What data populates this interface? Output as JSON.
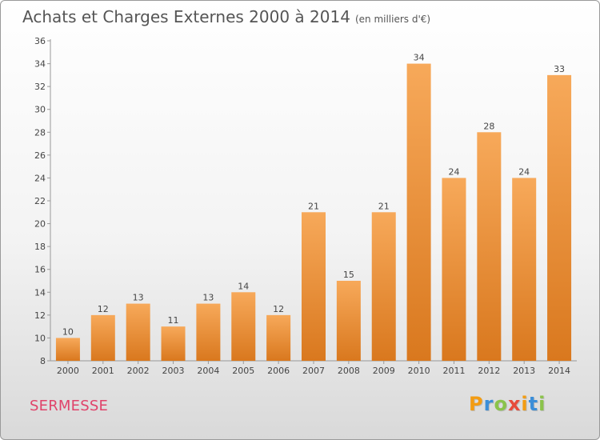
{
  "header": {
    "title": "Achats et Charges Externes 2000 à 2014",
    "subtitle": "(en milliers d'€)"
  },
  "footer": {
    "commune": "SERMESSE",
    "logo_letters": [
      {
        "ch": "P",
        "color": "#f39c12"
      },
      {
        "ch": "r",
        "color": "#3b8ed8"
      },
      {
        "ch": "o",
        "color": "#8bc34a"
      },
      {
        "ch": "x",
        "color": "#e74c3c"
      },
      {
        "ch": "i",
        "color": "#f39c12"
      },
      {
        "ch": "t",
        "color": "#3b8ed8"
      },
      {
        "ch": "i",
        "color": "#8bc34a"
      }
    ]
  },
  "chart_data": {
    "type": "bar",
    "title": "Achats et Charges Externes 2000 à 2014",
    "subtitle": "(en milliers d'€)",
    "categories": [
      "2000",
      "2001",
      "2002",
      "2003",
      "2004",
      "2005",
      "2006",
      "2007",
      "2008",
      "2009",
      "2010",
      "2011",
      "2012",
      "2013",
      "2014"
    ],
    "values": [
      10,
      12,
      13,
      11,
      13,
      14,
      12,
      21,
      15,
      21,
      34,
      24,
      28,
      24,
      33
    ],
    "ylim": [
      8,
      36
    ],
    "yticks": [
      8,
      10,
      12,
      14,
      16,
      18,
      20,
      22,
      24,
      26,
      28,
      30,
      32,
      34,
      36
    ],
    "grid": false,
    "xlabel": "",
    "ylabel": "",
    "bar_color_top": "#f7a95a",
    "bar_color_bottom": "#d9781e"
  }
}
